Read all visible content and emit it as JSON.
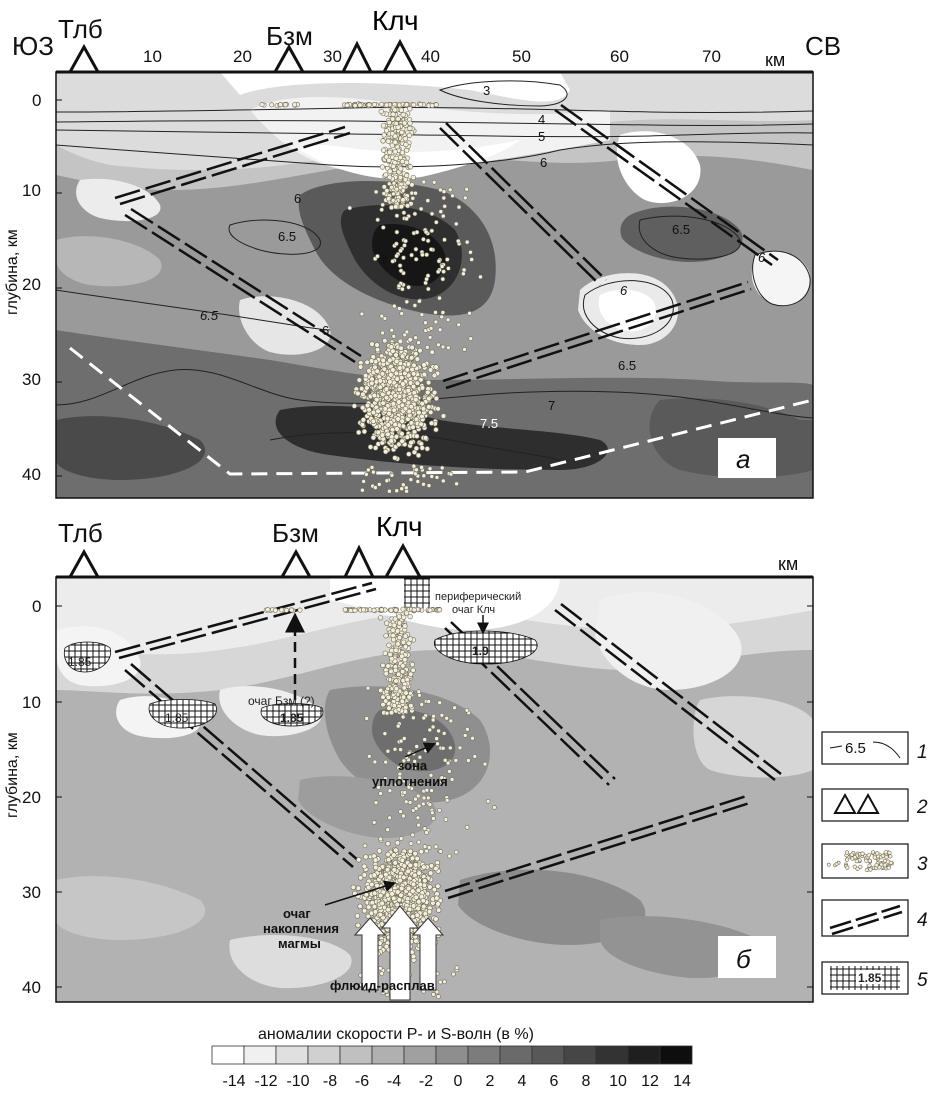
{
  "colors": {
    "scale": [
      "#ffffff",
      "#f0f0f0",
      "#e0e0e0",
      "#d0d0d0",
      "#c0c0c0",
      "#b0b0b0",
      "#a0a0a0",
      "#8e8e8e",
      "#7c7c7c",
      "#6a6a6a",
      "#585858",
      "#464646",
      "#333333",
      "#1f1f1f",
      "#0e0e0e"
    ],
    "frame": "#111111",
    "dots_fill": "#f3efdc",
    "dots_stroke": "#6f6a55",
    "moho": "#ffffff"
  },
  "top_panel": {
    "panel_letter": "а",
    "corner_left": "ЮЗ",
    "corner_right": "СВ",
    "x_unit": "км",
    "x_ticks": [
      "10",
      "20",
      "30",
      "40",
      "50",
      "60",
      "70"
    ],
    "y_ticks": [
      "0",
      "10",
      "20",
      "30",
      "40"
    ],
    "y_axis_label": "глубина, км",
    "volcanoes": [
      "Тлб",
      "Бзм",
      "Клч"
    ],
    "isoline_labels": [
      "3",
      "4",
      "5",
      "6",
      "6",
      "6.5",
      "7",
      "6.5",
      "6",
      "6",
      "6.5",
      "6",
      "6.5",
      "7",
      "7.5"
    ]
  },
  "bottom_panel": {
    "panel_letter": "б",
    "x_unit": "км",
    "y_ticks": [
      "0",
      "10",
      "20",
      "30",
      "40"
    ],
    "y_axis_label": "глубина, км",
    "volcanoes": [
      "Тлб",
      "Бзм",
      "Клч"
    ],
    "annotations": {
      "peripheral": "периферический",
      "peripheral2": "очаг Клч",
      "bzm": "очаг Бзм (?)",
      "compaction1": "зона",
      "compaction2": "уплотнения",
      "accum1": "очаг",
      "accum2": "накопления",
      "accum3": "магмы",
      "fluid": "флюид-расплав"
    },
    "vpvs_labels": [
      "1.85",
      "1.85",
      "1.85",
      "1.9"
    ]
  },
  "legend": {
    "items": [
      {
        "num": "1",
        "sample": "6.5"
      },
      {
        "num": "2",
        "sample": ""
      },
      {
        "num": "3",
        "sample": ""
      },
      {
        "num": "4",
        "sample": ""
      },
      {
        "num": "5",
        "sample": "1.85"
      }
    ]
  },
  "colorbar": {
    "title": "аномалии скорости P- и S-волн (в %)",
    "ticks": [
      "-14",
      "-12",
      "-10",
      "-8",
      "-6",
      "-4",
      "-2",
      "0",
      "2",
      "4",
      "6",
      "8",
      "10",
      "12",
      "14"
    ]
  }
}
